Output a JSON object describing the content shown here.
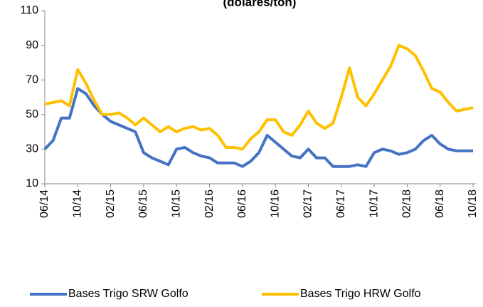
{
  "chart_data": {
    "type": "line",
    "title": "(dólares/ton)",
    "x": [
      "06/14",
      "07/14",
      "08/14",
      "09/14",
      "10/14",
      "11/14",
      "12/14",
      "01/15",
      "02/15",
      "03/15",
      "04/15",
      "05/15",
      "06/15",
      "07/15",
      "08/15",
      "09/15",
      "10/15",
      "11/15",
      "12/15",
      "01/16",
      "02/16",
      "03/16",
      "04/16",
      "05/16",
      "06/16",
      "07/16",
      "08/16",
      "09/16",
      "10/16",
      "11/16",
      "12/16",
      "01/17",
      "02/17",
      "03/17",
      "04/17",
      "05/17",
      "06/17",
      "07/17",
      "08/17",
      "09/17",
      "10/17",
      "11/17",
      "12/17",
      "01/18",
      "02/18",
      "03/18",
      "04/18",
      "05/18",
      "06/18",
      "07/18",
      "08/18",
      "09/18",
      "10/18"
    ],
    "xticks": [
      "06/14",
      "10/14",
      "02/15",
      "06/15",
      "10/15",
      "02/16",
      "06/16",
      "10/16",
      "02/17",
      "06/17",
      "10/17",
      "02/18",
      "06/18",
      "10/18"
    ],
    "series": [
      {
        "name": "Bases Trigo SRW Golfo",
        "color": "#4472c4",
        "values": [
          30,
          35,
          48,
          48,
          65,
          62,
          55,
          50,
          46,
          44,
          42,
          40,
          28,
          25,
          23,
          21,
          30,
          31,
          28,
          26,
          25,
          22,
          22,
          22,
          20,
          23,
          28,
          38,
          34,
          30,
          26,
          25,
          30,
          25,
          25,
          20,
          20,
          20,
          21,
          20,
          28,
          30,
          29,
          27,
          28,
          30,
          35,
          38,
          33,
          30,
          29,
          29,
          29
        ]
      },
      {
        "name": "Bases Trigo HRW Golfo",
        "color": "#ffc000",
        "values": [
          56,
          57,
          58,
          55,
          76,
          68,
          58,
          50,
          50,
          51,
          48,
          44,
          48,
          44,
          40,
          43,
          40,
          42,
          43,
          41,
          42,
          38,
          31,
          31,
          30,
          36,
          40,
          47,
          47,
          40,
          38,
          44,
          52,
          45,
          42,
          45,
          60,
          77,
          60,
          55,
          62,
          70,
          78,
          90,
          88,
          84,
          75,
          65,
          63,
          57,
          52,
          53,
          54
        ]
      }
    ],
    "ylim": [
      10,
      110
    ],
    "yticks": [
      10,
      30,
      50,
      70,
      90,
      110
    ],
    "grid": false
  }
}
